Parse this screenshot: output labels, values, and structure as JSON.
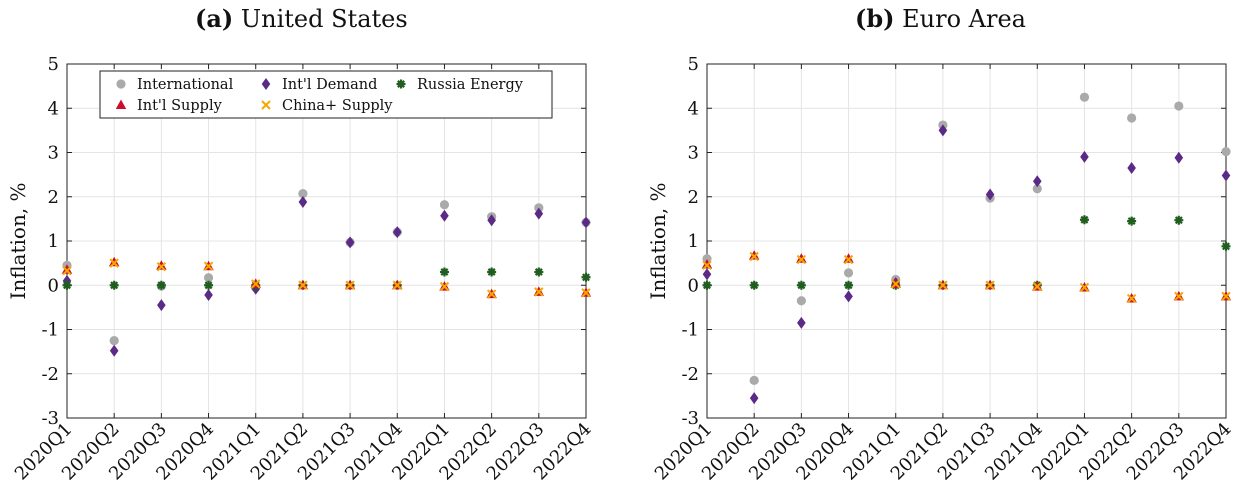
{
  "panels": [
    {
      "letter": "(a)",
      "name": "United States"
    },
    {
      "letter": "(b)",
      "name": "Euro Area"
    }
  ],
  "chart_data": [
    {
      "type": "scatter",
      "title": "(a) United States",
      "xlabel": "",
      "ylabel": "Inflation, %",
      "ylim": [
        -3,
        5
      ],
      "yticks": [
        -3,
        -2,
        -1,
        0,
        1,
        2,
        3,
        4,
        5
      ],
      "grid": true,
      "legend": "top",
      "categories": [
        "2020Q1",
        "2020Q2",
        "2020Q3",
        "2020Q4",
        "2021Q1",
        "2021Q2",
        "2021Q3",
        "2021Q4",
        "2022Q1",
        "2022Q2",
        "2022Q3",
        "2022Q4"
      ],
      "series": [
        {
          "name": "International",
          "marker": "circle",
          "color": "#aaaaaa",
          "values": [
            0.45,
            -1.25,
            -0.02,
            0.17,
            -0.05,
            2.07,
            0.97,
            1.2,
            1.82,
            1.55,
            1.75,
            1.42
          ]
        },
        {
          "name": "Int'l Demand",
          "marker": "diamond",
          "color": "#5b2a86",
          "values": [
            0.1,
            -1.48,
            -0.45,
            -0.22,
            -0.08,
            1.88,
            0.97,
            1.2,
            1.57,
            1.47,
            1.62,
            1.42
          ]
        },
        {
          "name": "Russia Energy",
          "marker": "asterisk",
          "color": "#1f5e1f",
          "values": [
            0.0,
            0.0,
            0.0,
            0.0,
            0.0,
            0.0,
            0.0,
            0.0,
            0.3,
            0.3,
            0.3,
            0.18
          ]
        },
        {
          "name": "Int'l Supply",
          "marker": "triangle",
          "color": "#c8102e",
          "values": [
            0.35,
            0.52,
            0.44,
            0.43,
            0.03,
            0.0,
            0.0,
            0.0,
            -0.03,
            -0.2,
            -0.15,
            -0.17
          ]
        },
        {
          "name": "China+ Supply",
          "marker": "x",
          "color": "#f5a800",
          "values": [
            0.33,
            0.5,
            0.42,
            0.43,
            0.03,
            0.0,
            0.0,
            0.0,
            -0.03,
            -0.2,
            -0.15,
            -0.17
          ]
        }
      ]
    },
    {
      "type": "scatter",
      "title": "(b) Euro Area",
      "xlabel": "",
      "ylabel": "Inflation, %",
      "ylim": [
        -3,
        5
      ],
      "yticks": [
        -3,
        -2,
        -1,
        0,
        1,
        2,
        3,
        4,
        5
      ],
      "grid": true,
      "legend": "none",
      "categories": [
        "2020Q1",
        "2020Q2",
        "2020Q3",
        "2020Q4",
        "2021Q1",
        "2021Q2",
        "2021Q3",
        "2021Q4",
        "2022Q1",
        "2022Q2",
        "2022Q3",
        "2022Q4"
      ],
      "series": [
        {
          "name": "International",
          "marker": "circle",
          "color": "#aaaaaa",
          "values": [
            0.6,
            -2.15,
            -0.35,
            0.28,
            0.13,
            3.62,
            1.97,
            2.18,
            4.25,
            3.78,
            4.05,
            3.02
          ]
        },
        {
          "name": "Int'l Demand",
          "marker": "diamond",
          "color": "#5b2a86",
          "values": [
            0.25,
            -2.55,
            -0.85,
            -0.25,
            0.05,
            3.5,
            2.05,
            2.35,
            2.9,
            2.65,
            2.88,
            2.48
          ]
        },
        {
          "name": "Russia Energy",
          "marker": "asterisk",
          "color": "#1f5e1f",
          "values": [
            0.0,
            0.0,
            0.0,
            0.0,
            0.0,
            0.0,
            0.0,
            0.0,
            1.48,
            1.45,
            1.47,
            0.88
          ]
        },
        {
          "name": "Int'l Supply",
          "marker": "triangle",
          "color": "#c8102e",
          "values": [
            0.47,
            0.67,
            0.6,
            0.6,
            0.03,
            0.0,
            0.0,
            -0.03,
            -0.05,
            -0.3,
            -0.25,
            -0.25
          ]
        },
        {
          "name": "China+ Supply",
          "marker": "x",
          "color": "#f5a800",
          "values": [
            0.45,
            0.65,
            0.58,
            0.58,
            0.03,
            0.0,
            0.0,
            -0.03,
            -0.05,
            -0.3,
            -0.25,
            -0.25
          ]
        }
      ]
    }
  ]
}
